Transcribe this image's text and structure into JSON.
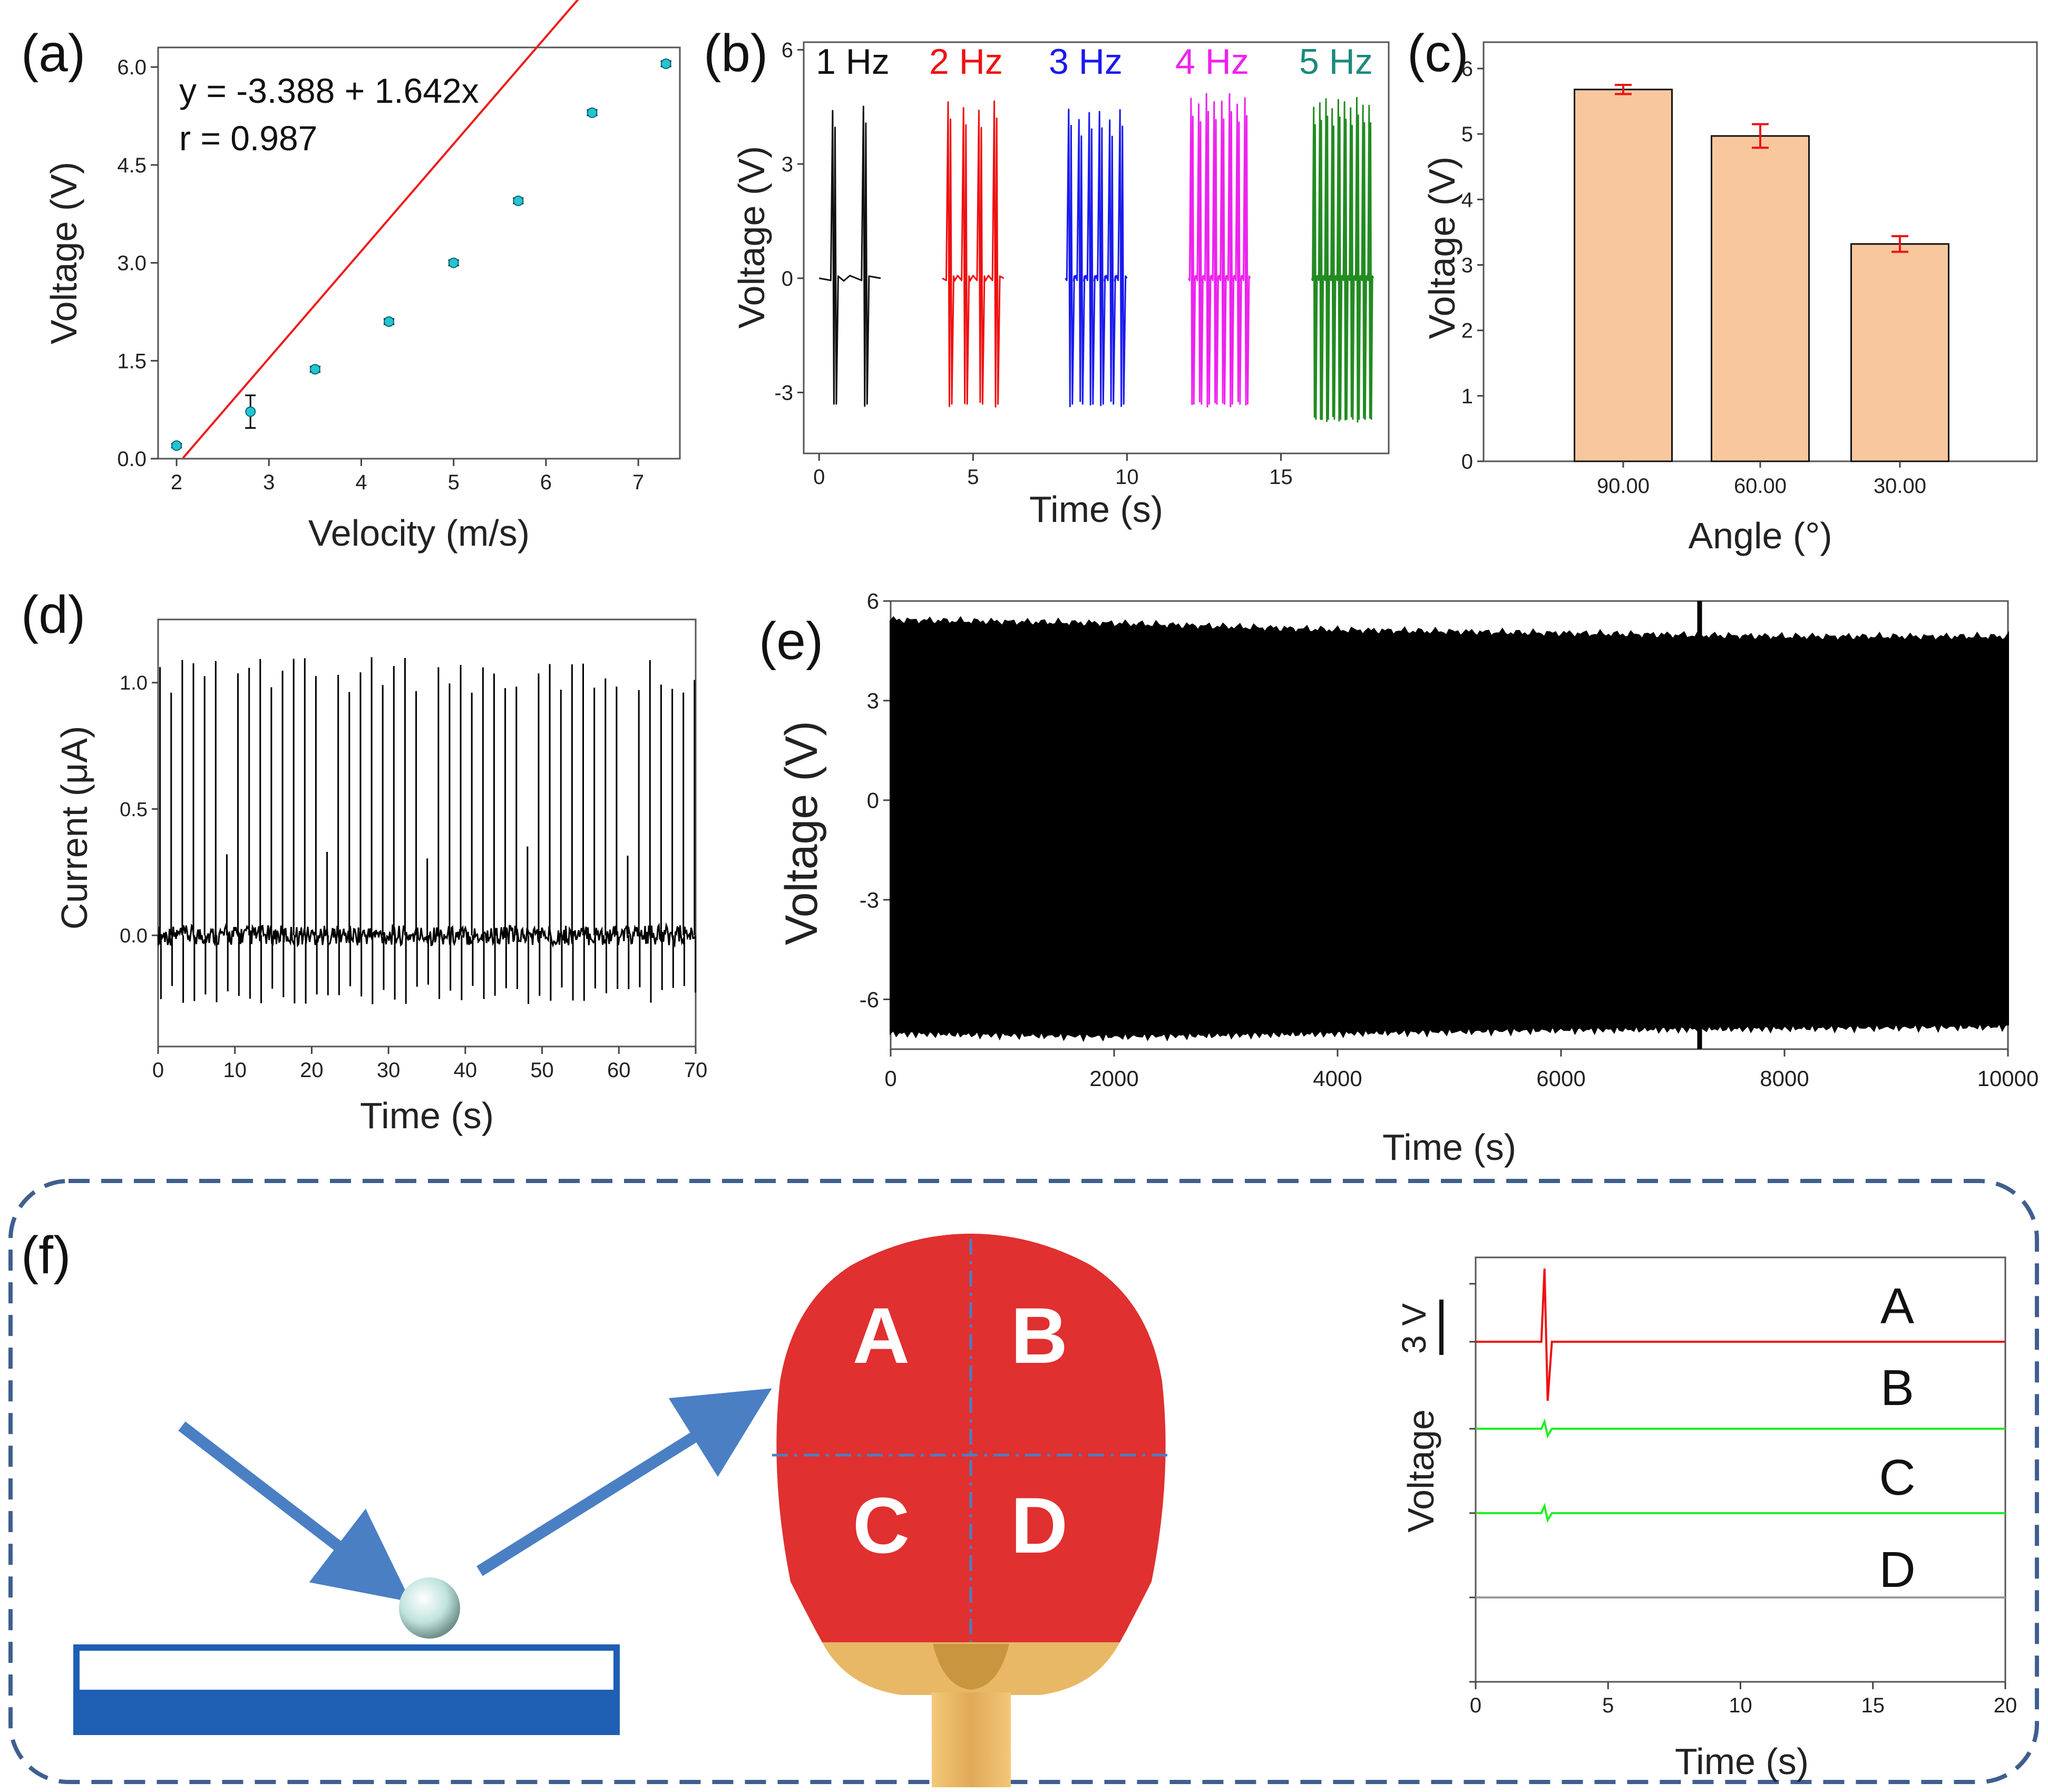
{
  "chart_data": [
    {
      "id": "a",
      "type": "scatter",
      "panel_label": "(a)",
      "xlabel": "Velocity (m/s)",
      "ylabel": "Voltage (V)",
      "xlim": [
        1.8,
        7.45
      ],
      "ylim": [
        0,
        6.3
      ],
      "xticks": [
        2,
        3,
        4,
        5,
        6,
        7
      ],
      "yticks": [
        0.0,
        1.5,
        3.0,
        4.5,
        6.0
      ],
      "ytick_labels": [
        "0.0",
        "1.5",
        "3.0",
        "4.5",
        "6.0"
      ],
      "x": [
        2.0,
        2.8,
        3.5,
        4.3,
        5.0,
        5.7,
        6.5,
        7.3
      ],
      "y": [
        0.2,
        0.72,
        1.37,
        2.1,
        3.0,
        3.95,
        5.3,
        6.05
      ],
      "yerr": [
        0.03,
        0.25,
        0.04,
        0.04,
        0.04,
        0.04,
        0.04,
        0.04
      ],
      "fit": {
        "intercept": -3.388,
        "slope": 1.642,
        "color": "#ee1c1c"
      },
      "annotations": [
        "y = -3.388 + 1.642x",
        "r = 0.987"
      ],
      "marker_color": "#23c4d4"
    },
    {
      "id": "b",
      "type": "line",
      "panel_label": "(b)",
      "xlabel": "Time (s)",
      "ylabel": "Voltage (V)",
      "xlim": [
        -0.5,
        18.5
      ],
      "ylim": [
        -4.6,
        6.2
      ],
      "xticks": [
        0,
        5,
        10,
        15
      ],
      "yticks": [
        -3,
        0,
        3,
        6
      ],
      "series": [
        {
          "name": "1 Hz",
          "color": "#111111",
          "t_start": 0,
          "duration": 2,
          "freq": 1,
          "amp_pos": 4.4,
          "amp_neg": -3.3
        },
        {
          "name": "2 Hz",
          "color": "#ee1111",
          "t_start": 4,
          "duration": 2,
          "freq": 2,
          "amp_pos": 4.5,
          "amp_neg": -3.3
        },
        {
          "name": "3 Hz",
          "color": "#1a1aee",
          "t_start": 8,
          "duration": 2,
          "freq": 3,
          "amp_pos": 4.3,
          "amp_neg": -3.3
        },
        {
          "name": "4 Hz",
          "color": "#ee22ee",
          "t_start": 12,
          "duration": 2,
          "freq": 4,
          "amp_pos": 4.7,
          "amp_neg": -3.3
        },
        {
          "name": "5 Hz",
          "color": "#228b22",
          "t_start": 16,
          "duration": 2,
          "freq": 5,
          "amp_pos": 4.6,
          "amp_neg": -3.7
        }
      ],
      "legend_colors": [
        "#111111",
        "#ee1111",
        "#1a1aee",
        "#ee22ee",
        "#1a8a7a"
      ]
    },
    {
      "id": "c",
      "type": "bar",
      "panel_label": "(c)",
      "xlabel": "Angle (°)",
      "ylabel": "Voltage (V)",
      "ylim": [
        0,
        6
      ],
      "yticks": [
        0,
        1,
        2,
        3,
        4,
        5,
        6
      ],
      "categories": [
        "90.00",
        "60.00",
        "30.00"
      ],
      "values": [
        5.68,
        4.97,
        3.32
      ],
      "errors": [
        0.07,
        0.18,
        0.12
      ],
      "bar_color": "#f8c79e",
      "error_color": "#ee1111"
    },
    {
      "id": "d",
      "type": "line",
      "panel_label": "(d)",
      "xlabel": "Time (s)",
      "ylabel": "Current (μA)",
      "xlim": [
        0,
        70
      ],
      "ylim": [
        -0.44,
        1.25
      ],
      "xticks": [
        0,
        10,
        20,
        30,
        40,
        50,
        60,
        70
      ],
      "yticks": [
        0.0,
        0.5,
        1.0
      ],
      "ytick_labels": [
        "0.0",
        "0.5",
        "1.0"
      ],
      "pulse_period_s": 1.45,
      "peak_current": 1.08,
      "negative_peak": -0.26,
      "color": "#000000"
    },
    {
      "id": "e",
      "type": "area",
      "panel_label": "(e)",
      "xlabel": "Time (s)",
      "ylabel": "Voltage (V)",
      "xlim": [
        0,
        10000
      ],
      "ylim": [
        -7.5,
        6
      ],
      "xticks": [
        0,
        2000,
        4000,
        6000,
        8000,
        10000
      ],
      "yticks": [
        -6,
        -3,
        0,
        3,
        6
      ],
      "upper_envelope": [
        [
          0,
          5.4
        ],
        [
          2000,
          5.3
        ],
        [
          4000,
          5.1
        ],
        [
          6000,
          5.0
        ],
        [
          8000,
          4.9
        ],
        [
          10000,
          4.9
        ]
      ],
      "lower_envelope": [
        [
          0,
          -7.0
        ],
        [
          2000,
          -7.1
        ],
        [
          4000,
          -7.0
        ],
        [
          6000,
          -6.9
        ],
        [
          8000,
          -6.85
        ],
        [
          10000,
          -6.8
        ]
      ],
      "color": "#000000"
    },
    {
      "id": "f",
      "type": "line",
      "xlabel": "Time (s)",
      "ylabel": "Voltage",
      "scale_bar": "3 V",
      "xlim": [
        0,
        20
      ],
      "xticks": [
        0,
        5,
        10,
        15,
        20
      ],
      "spike_time_s": 2.6,
      "series": [
        {
          "name": "A",
          "color": "#ee1111",
          "spike_up": 2.6,
          "spike_down": 2.1
        },
        {
          "name": "B",
          "color": "#22ee22",
          "spike_up": 0.25,
          "spike_down": 0.25
        },
        {
          "name": "C",
          "color": "#22ee22",
          "spike_up": 0.25,
          "spike_down": 0.25
        },
        {
          "name": "D",
          "color": "#999999",
          "spike_up": 0,
          "spike_down": 0
        }
      ]
    }
  ],
  "illustration": {
    "panel_label": "(f)",
    "zones": [
      "A",
      "B",
      "C",
      "D"
    ],
    "paddle_color": "#e03030",
    "handle_color": "#e8b866",
    "arrow_color": "#4a7fc4",
    "table_color": "#1e5fb4",
    "ball_color": "#bfe3dc",
    "frame_color": "#3f5f8f"
  }
}
